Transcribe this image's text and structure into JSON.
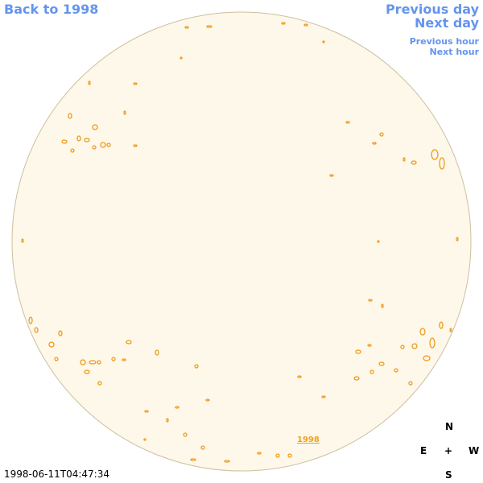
{
  "nav": {
    "back": "Back to 1998",
    "previous_day": "Previous day",
    "next_day": "Next day",
    "previous_hour": "Previous hour",
    "next_hour": "Next hour"
  },
  "image_link": "1998",
  "timestamp": "1998-06-11T04:47:34",
  "compass": {
    "north": "N",
    "east": "E",
    "center": "+",
    "west": "W",
    "south": "S"
  }
}
